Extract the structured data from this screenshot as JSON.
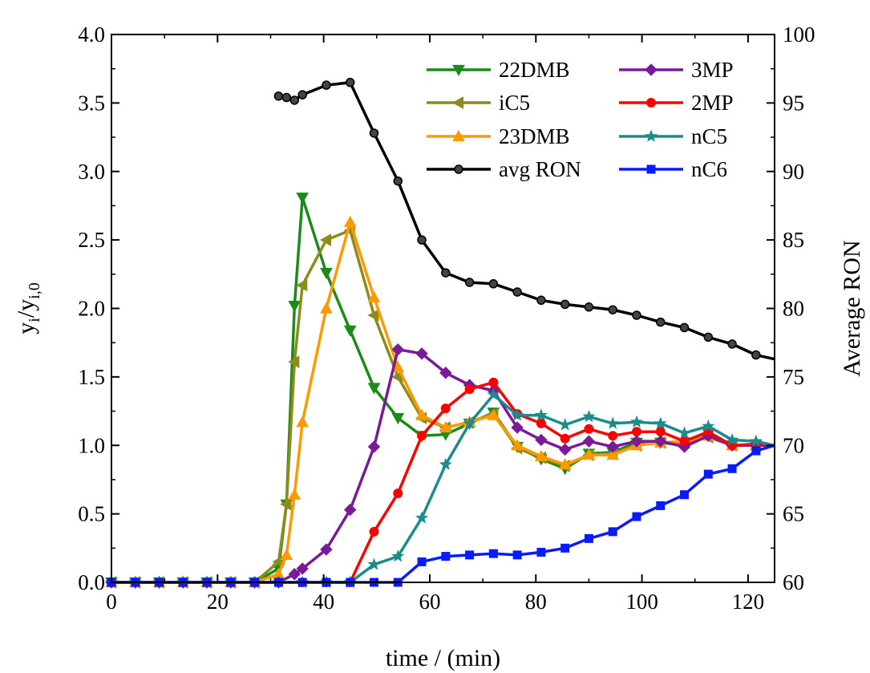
{
  "chart_data": {
    "type": "line",
    "xlabel": "time / (min)",
    "ylabel": "y_i/y_i,0",
    "ylabel_parts": {
      "y": "y",
      "sub_i": "i",
      "slash": "/",
      "sub_i0": "i,0"
    },
    "y2label": "Average RON",
    "xlim": [
      0,
      125
    ],
    "ylim": [
      0,
      4
    ],
    "y2lim": [
      60,
      100
    ],
    "x_ticks": [
      "0",
      "20",
      "40",
      "60",
      "80",
      "100",
      "120"
    ],
    "y_ticks": [
      "0.0",
      "0.5",
      "1.0",
      "1.5",
      "2.0",
      "2.5",
      "3.0",
      "3.5",
      "4.0"
    ],
    "y2_ticks": [
      "60",
      "65",
      "70",
      "75",
      "80",
      "85",
      "90",
      "95",
      "100"
    ],
    "legend_position": "top-right",
    "series": [
      {
        "name": "22DMB",
        "axis": "left",
        "color": "#1a8c1a",
        "marker": "triangle-down",
        "points": [
          [
            0,
            0
          ],
          [
            4.5,
            0
          ],
          [
            9,
            0
          ],
          [
            13.5,
            0
          ],
          [
            18,
            0
          ],
          [
            22.5,
            0
          ],
          [
            27,
            0
          ],
          [
            31.5,
            0.1
          ],
          [
            33,
            0.57
          ],
          [
            34.5,
            2.02
          ],
          [
            36,
            2.81
          ],
          [
            40.5,
            2.26
          ],
          [
            45,
            1.84
          ],
          [
            49.5,
            1.42
          ],
          [
            54,
            1.2
          ],
          [
            58.5,
            1.07
          ],
          [
            63,
            1.08
          ],
          [
            67.5,
            1.16
          ],
          [
            72,
            1.24
          ],
          [
            76.5,
            0.99
          ],
          [
            81,
            0.9
          ],
          [
            85.5,
            0.83
          ],
          [
            90,
            0.94
          ],
          [
            94.5,
            0.95
          ],
          [
            99,
            1.02
          ],
          [
            103.5,
            1.02
          ],
          [
            108,
            1.0
          ],
          [
            112.5,
            1.09
          ],
          [
            117,
            1.0
          ],
          [
            121.5,
            1.0
          ],
          [
            125,
            1.0
          ]
        ]
      },
      {
        "name": "iC5",
        "axis": "left",
        "color": "#8c8c1a",
        "marker": "triangle-left",
        "points": [
          [
            0,
            0
          ],
          [
            4.5,
            0
          ],
          [
            9,
            0
          ],
          [
            13.5,
            0
          ],
          [
            18,
            0
          ],
          [
            22.5,
            0
          ],
          [
            27,
            0
          ],
          [
            31.5,
            0.15
          ],
          [
            33,
            0.57
          ],
          [
            34.5,
            1.61
          ],
          [
            36,
            2.17
          ],
          [
            40.5,
            2.5
          ],
          [
            45,
            2.57
          ],
          [
            49.5,
            1.95
          ],
          [
            54,
            1.5
          ],
          [
            58.5,
            1.2
          ],
          [
            63,
            1.13
          ],
          [
            67.5,
            1.17
          ],
          [
            72,
            1.23
          ],
          [
            76.5,
            0.98
          ],
          [
            81,
            0.91
          ],
          [
            85.5,
            0.85
          ],
          [
            90,
            0.93
          ],
          [
            94.5,
            0.94
          ],
          [
            99,
            1.0
          ],
          [
            103.5,
            1.02
          ],
          [
            108,
            1.02
          ],
          [
            112.5,
            1.06
          ],
          [
            117,
            1.0
          ],
          [
            121.5,
            1.0
          ],
          [
            125,
            1.0
          ]
        ]
      },
      {
        "name": "23DMB",
        "axis": "left",
        "color": "#ff9900",
        "marker": "triangle-up",
        "points": [
          [
            0,
            0
          ],
          [
            4.5,
            0
          ],
          [
            9,
            0
          ],
          [
            13.5,
            0
          ],
          [
            18,
            0
          ],
          [
            22.5,
            0
          ],
          [
            27,
            0
          ],
          [
            31.5,
            0.06
          ],
          [
            33,
            0.2
          ],
          [
            34.5,
            0.64
          ],
          [
            36,
            1.17
          ],
          [
            40.5,
            2.0
          ],
          [
            45,
            2.63
          ],
          [
            49.5,
            2.08
          ],
          [
            54,
            1.57
          ],
          [
            58.5,
            1.22
          ],
          [
            63,
            1.13
          ],
          [
            67.5,
            1.17
          ],
          [
            72,
            1.22
          ],
          [
            76.5,
            1.0
          ],
          [
            81,
            0.92
          ],
          [
            85.5,
            0.86
          ],
          [
            90,
            0.93
          ],
          [
            94.5,
            0.93
          ],
          [
            99,
            1.0
          ],
          [
            103.5,
            1.02
          ],
          [
            108,
            1.03
          ],
          [
            112.5,
            1.07
          ],
          [
            117,
            1.0
          ],
          [
            121.5,
            1.0
          ],
          [
            125,
            1.0
          ]
        ]
      },
      {
        "name": "avg RON",
        "axis": "right",
        "color": "#000000",
        "marker": "circle",
        "points": [
          [
            31.5,
            95.5
          ],
          [
            33,
            95.4
          ],
          [
            34.5,
            95.2
          ],
          [
            36,
            95.6
          ],
          [
            40.5,
            96.3
          ],
          [
            45,
            96.5
          ],
          [
            49.5,
            92.8
          ],
          [
            54,
            89.3
          ],
          [
            58.5,
            85.0
          ],
          [
            63,
            82.6
          ],
          [
            67.5,
            81.9
          ],
          [
            72,
            81.8
          ],
          [
            76.5,
            81.2
          ],
          [
            81,
            80.6
          ],
          [
            85.5,
            80.3
          ],
          [
            90,
            80.1
          ],
          [
            94.5,
            79.9
          ],
          [
            99,
            79.5
          ],
          [
            103.5,
            79.0
          ],
          [
            108,
            78.6
          ],
          [
            112.5,
            77.9
          ],
          [
            117,
            77.4
          ],
          [
            121.5,
            76.6
          ],
          [
            125,
            76.3
          ]
        ]
      },
      {
        "name": "3MP",
        "axis": "left",
        "color": "#7a1a99",
        "marker": "diamond",
        "points": [
          [
            0,
            0
          ],
          [
            4.5,
            0
          ],
          [
            9,
            0
          ],
          [
            13.5,
            0
          ],
          [
            18,
            0
          ],
          [
            22.5,
            0
          ],
          [
            27,
            0
          ],
          [
            31.5,
            0
          ],
          [
            34.5,
            0.06
          ],
          [
            36,
            0.1
          ],
          [
            40.5,
            0.24
          ],
          [
            45,
            0.53
          ],
          [
            49.5,
            0.99
          ],
          [
            54,
            1.7
          ],
          [
            58.5,
            1.67
          ],
          [
            63,
            1.53
          ],
          [
            67.5,
            1.44
          ],
          [
            72,
            1.4
          ],
          [
            76.5,
            1.13
          ],
          [
            81,
            1.04
          ],
          [
            85.5,
            0.97
          ],
          [
            90,
            1.03
          ],
          [
            94.5,
            0.99
          ],
          [
            99,
            1.03
          ],
          [
            103.5,
            1.03
          ],
          [
            108,
            0.99
          ],
          [
            112.5,
            1.07
          ],
          [
            117,
            1.0
          ],
          [
            121.5,
            1.0
          ],
          [
            125,
            1.0
          ]
        ]
      },
      {
        "name": "2MP",
        "axis": "left",
        "color": "#ff0000",
        "marker": "circle",
        "points": [
          [
            0,
            0
          ],
          [
            4.5,
            0
          ],
          [
            9,
            0
          ],
          [
            13.5,
            0
          ],
          [
            18,
            0
          ],
          [
            22.5,
            0
          ],
          [
            27,
            0
          ],
          [
            31.5,
            0
          ],
          [
            36,
            0
          ],
          [
            40.5,
            0
          ],
          [
            45,
            0
          ],
          [
            49.5,
            0.37
          ],
          [
            54,
            0.65
          ],
          [
            58.5,
            1.07
          ],
          [
            63,
            1.27
          ],
          [
            67.5,
            1.41
          ],
          [
            72,
            1.46
          ],
          [
            76.5,
            1.23
          ],
          [
            81,
            1.16
          ],
          [
            85.5,
            1.05
          ],
          [
            90,
            1.12
          ],
          [
            94.5,
            1.07
          ],
          [
            99,
            1.1
          ],
          [
            103.5,
            1.1
          ],
          [
            108,
            1.03
          ],
          [
            112.5,
            1.1
          ],
          [
            117,
            1.0
          ],
          [
            121.5,
            1.01
          ],
          [
            125,
            1.0
          ]
        ]
      },
      {
        "name": "nC5",
        "axis": "left",
        "color": "#1a8c8c",
        "marker": "star",
        "points": [
          [
            0,
            0
          ],
          [
            4.5,
            0
          ],
          [
            9,
            0
          ],
          [
            13.5,
            0
          ],
          [
            18,
            0
          ],
          [
            22.5,
            0
          ],
          [
            27,
            0
          ],
          [
            31.5,
            0
          ],
          [
            36,
            0
          ],
          [
            40.5,
            0
          ],
          [
            45,
            0
          ],
          [
            49.5,
            0.13
          ],
          [
            54,
            0.19
          ],
          [
            58.5,
            0.47
          ],
          [
            63,
            0.86
          ],
          [
            67.5,
            1.16
          ],
          [
            72,
            1.37
          ],
          [
            76.5,
            1.22
          ],
          [
            81,
            1.22
          ],
          [
            85.5,
            1.15
          ],
          [
            90,
            1.21
          ],
          [
            94.5,
            1.16
          ],
          [
            99,
            1.17
          ],
          [
            103.5,
            1.16
          ],
          [
            108,
            1.09
          ],
          [
            112.5,
            1.14
          ],
          [
            117,
            1.04
          ],
          [
            121.5,
            1.03
          ],
          [
            125,
            1.0
          ]
        ]
      },
      {
        "name": "nC6",
        "axis": "left",
        "color": "#0a1aff",
        "marker": "square",
        "points": [
          [
            0,
            0
          ],
          [
            4.5,
            0
          ],
          [
            9,
            0
          ],
          [
            13.5,
            0
          ],
          [
            18,
            0
          ],
          [
            22.5,
            0
          ],
          [
            27,
            0
          ],
          [
            31.5,
            0
          ],
          [
            36,
            0
          ],
          [
            40.5,
            0
          ],
          [
            45,
            0
          ],
          [
            49.5,
            0
          ],
          [
            54,
            0
          ],
          [
            58.5,
            0.15
          ],
          [
            63,
            0.19
          ],
          [
            67.5,
            0.2
          ],
          [
            72,
            0.21
          ],
          [
            76.5,
            0.2
          ],
          [
            81,
            0.22
          ],
          [
            85.5,
            0.25
          ],
          [
            90,
            0.32
          ],
          [
            94.5,
            0.37
          ],
          [
            99,
            0.48
          ],
          [
            103.5,
            0.56
          ],
          [
            108,
            0.64
          ],
          [
            112.5,
            0.79
          ],
          [
            117,
            0.83
          ],
          [
            121.5,
            0.96
          ],
          [
            125,
            1.0
          ]
        ]
      }
    ],
    "legend_order": [
      "22DMB",
      "3MP",
      "iC5",
      "2MP",
      "23DMB",
      "nC5",
      "avg RON",
      "nC6"
    ]
  }
}
